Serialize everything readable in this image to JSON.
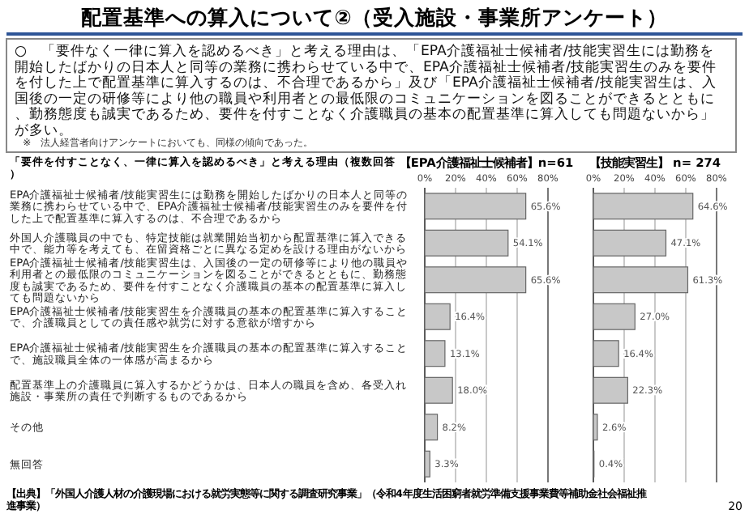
{
  "chart_data": [
    {
      "type": "other",
      "title": "配置基準への算入について②（受入施設・事業所アンケート）",
      "subtitle": "○　「要件なく一律に算入を認めるべき」と考える理由は、「EPA介護福祉士候補者/技能実習生には勤務を開始したばかりの日本人と同等の業務に携わらせている中で、EPA介護福祉士候補者/技能実習生のみを要件を付した上で配置基準に算入するのは、不合理であるから」及び「EPA介護福祉士候補者/技能実習生は、入国後の一定の研修等により他の職員や利用者との最低限のコミュニケーションを図ることができるとともに、勤務態度も誠実であるため、要件を付すことなく介護職員の基本の配置基準に算入しても問題ないから」が多い。",
      "annotations": [
        "※　法人経営者向けアンケートにおいても、同様の傾向であった。"
      ]
    },
    {
      "type": "bar",
      "orientation": "horizontal",
      "title": "【EPA介護福祉士候補者】n=61",
      "ylabel": "「要件を付すことなく、一律に算入を認めるべき」と考える理由（複数回答）",
      "categories": [
        "EPA介護福祉士候補者/技能実習生には勤務を開始したばかりの日本人と同等の業務に携わらせている中で、EPA介護福祉士候補者/技能実習生のみを要件を付した上で配置基準に算入するのは、不合理であるから",
        "外国人介護職員の中でも、特定技能は就業開始当初から配置基準に算入できる中で、能力等を考えても、在留資格ごとに異なる定めを設ける理由がないから",
        "EPA介護福祉士候補者/技能実習生は、入国後の一定の研修等により他の職員や利用者との最低限のコミュニケーションを図ることができるとともに、勤務態度も誠実であるため、要件を付すことなく介護職員の基本の配置基準に算入しても問題ないから",
        "EPA介護福祉士候補者/技能実習生を介護職員の基本の配置基準に算入することで、介護職員としての責任感や就労に対する意欲が増すから",
        "EPA介護福祉士候補者/技能実習生を介護職員の基本の配置基準に算入することで、施設職員全体の一体感が高まるから",
        "配置基準上の介護職員に算入するかどうかは、日本人の職員を含め、各受入れ施設・事業所の責任で判断するものであるから",
        "その他",
        "無回答"
      ],
      "values": [
        65.6,
        54.1,
        65.6,
        16.4,
        13.1,
        18.0,
        8.2,
        3.3
      ],
      "value_labels": [
        "65.6%",
        "54.1%",
        "65.6%",
        "16.4%",
        "13.1%",
        "18.0%",
        "8.2%",
        "3.3%"
      ],
      "color": "#c8c8c8",
      "xlim": [
        0,
        80
      ],
      "xticks": [
        {
          "value": 0,
          "label": "0%"
        },
        {
          "value": 20,
          "label": "20%"
        },
        {
          "value": 40,
          "label": "40%"
        },
        {
          "value": 60,
          "label": "60%"
        },
        {
          "value": 80,
          "label": "80%"
        }
      ],
      "grid": "x",
      "annotations": [
        "【出典】「外国人介護人材の介護現場における就労実態等に関する調査研究事業」（令和4年度生活困窮者就労準備支援事業費等補助金社会福祉推進事業）",
        "20"
      ]
    },
    {
      "type": "bar",
      "orientation": "horizontal",
      "title": "【技能実習生】 n= 274",
      "tick_labels": "x",
      "categories": [
        "EPA介護福祉士候補者/技能実習生には勤務を開始したばかりの日本人と同等の業務に携わらせている中で、EPA介護福祉士候補者/技能実習生のみを要件を付した上で配置基準に算入するのは、不合理であるから",
        "外国人介護職員の中でも、特定技能は就業開始当初から配置基準に算入できる中で、能力等を考えても、在留資格ごとに異なる定めを設ける理由がないから",
        "EPA介護福祉士候補者/技能実習生は、入国後の一定の研修等により他の職員や利用者との最低限のコミュニケーションを図ることができるとともに、勤務態度も誠実であるため、要件を付すことなく介護職員の基本の配置基準に算入しても問題ないから",
        "EPA介護福祉士候補者/技能実習生を介護職員の基本の配置基準に算入することで、介護職員としての責任感や就労に対する意欲が増すから",
        "EPA介護福祉士候補者/技能実習生を介護職員の基本の配置基準に算入することで、施設職員全体の一体感が高まるから",
        "配置基準上の介護職員に算入するかどうかは、日本人の職員を含め、各受入れ施設・事業所の責任で判断するものであるから",
        "その他",
        "無回答"
      ],
      "values": [
        64.6,
        47.1,
        61.3,
        27.0,
        16.4,
        22.3,
        2.6,
        0.4
      ],
      "value_labels": [
        "64.6%",
        "47.1%",
        "61.3%",
        "27.0%",
        "16.4%",
        "22.3%",
        "2.6%",
        "0.4%"
      ],
      "color": "#c8c8c8",
      "xlim": [
        0,
        80
      ],
      "xticks": [
        {
          "value": 0,
          "label": "0%"
        },
        {
          "value": 20,
          "label": "20%"
        },
        {
          "value": 40,
          "label": "40%"
        },
        {
          "value": 60,
          "label": "60%"
        },
        {
          "value": 80,
          "label": "80%"
        }
      ],
      "grid": "x"
    }
  ]
}
